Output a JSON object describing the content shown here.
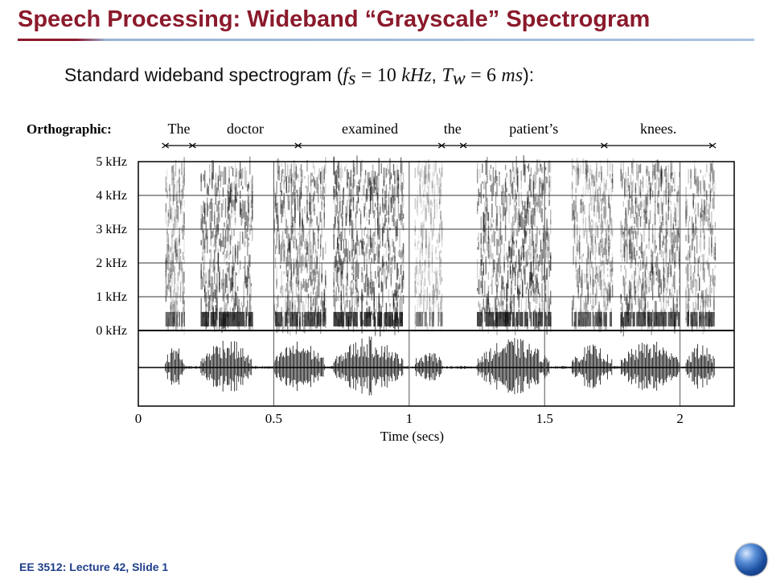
{
  "slide": {
    "title": "Speech Processing: Wideband “Grayscale” Spectrogram",
    "subtitle_prefix": "Standard wideband spectrogram (",
    "fs_symbol": "f",
    "fs_sub": "s",
    "equals": "=",
    "fs_value": "10",
    "fs_unit": "kHz",
    "comma": ",",
    "tw_symbol": "T",
    "tw_sub": "w",
    "tw_value": "6",
    "tw_unit": "ms",
    "subtitle_suffix": "):",
    "footer": "EE 3512: Lecture 42, Slide 1"
  },
  "chart_data": {
    "type": "heatmap",
    "title": "",
    "xlabel": "Time (secs)",
    "ylabel": "",
    "xlim": [
      0,
      2.2
    ],
    "ylim": [
      0,
      5
    ],
    "x_ticks": [
      {
        "value": 0,
        "label": "0"
      },
      {
        "value": 0.5,
        "label": "0.5"
      },
      {
        "value": 1,
        "label": "1"
      },
      {
        "value": 1.5,
        "label": "1.5"
      },
      {
        "value": 2,
        "label": "2"
      }
    ],
    "y_ticks": [
      {
        "value": 0,
        "label": "0 kHz"
      },
      {
        "value": 1,
        "label": "1 kHz"
      },
      {
        "value": 2,
        "label": "2 kHz"
      },
      {
        "value": 3,
        "label": "3 kHz"
      },
      {
        "value": 4,
        "label": "4 kHz"
      },
      {
        "value": 5,
        "label": "5 kHz"
      }
    ],
    "orthographic_label": "Orthographic:",
    "words": [
      {
        "word": "The",
        "start": 0.1,
        "end": 0.2
      },
      {
        "word": "doctor",
        "start": 0.2,
        "end": 0.59
      },
      {
        "word": "examined",
        "start": 0.59,
        "end": 1.12
      },
      {
        "word": "the",
        "start": 1.12,
        "end": 1.2
      },
      {
        "word": "patient’s",
        "start": 1.2,
        "end": 1.72
      },
      {
        "word": "knees.",
        "start": 1.72,
        "end": 2.12
      }
    ],
    "grid": true
  }
}
